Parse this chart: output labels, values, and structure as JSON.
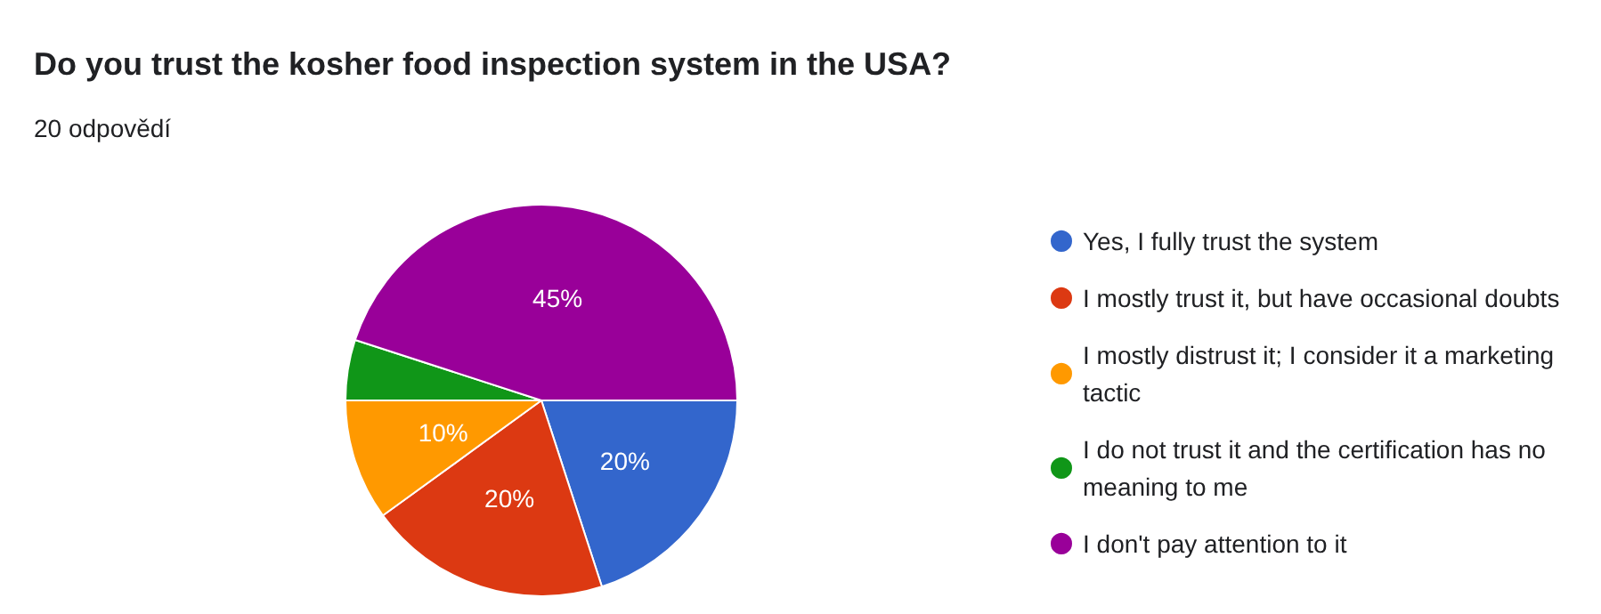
{
  "chart_data": {
    "type": "pie",
    "title": "Do you trust the kosher food inspection system in the USA?",
    "subtitle": "20 odpovědí",
    "categories": [
      "Yes, I fully trust the system",
      "I mostly trust it, but have occasional doubts",
      "I mostly distrust it; I consider it a marketing tactic",
      "I do not trust it and the certification has no meaning to me",
      "I don't pay attention to it"
    ],
    "values": [
      20,
      20,
      10,
      5,
      45
    ],
    "colors": [
      "#3366cc",
      "#dc3912",
      "#ff9900",
      "#109618",
      "#990099"
    ],
    "value_labels": [
      "20%",
      "20%",
      "10%",
      null,
      "45%"
    ],
    "legend": "right"
  }
}
